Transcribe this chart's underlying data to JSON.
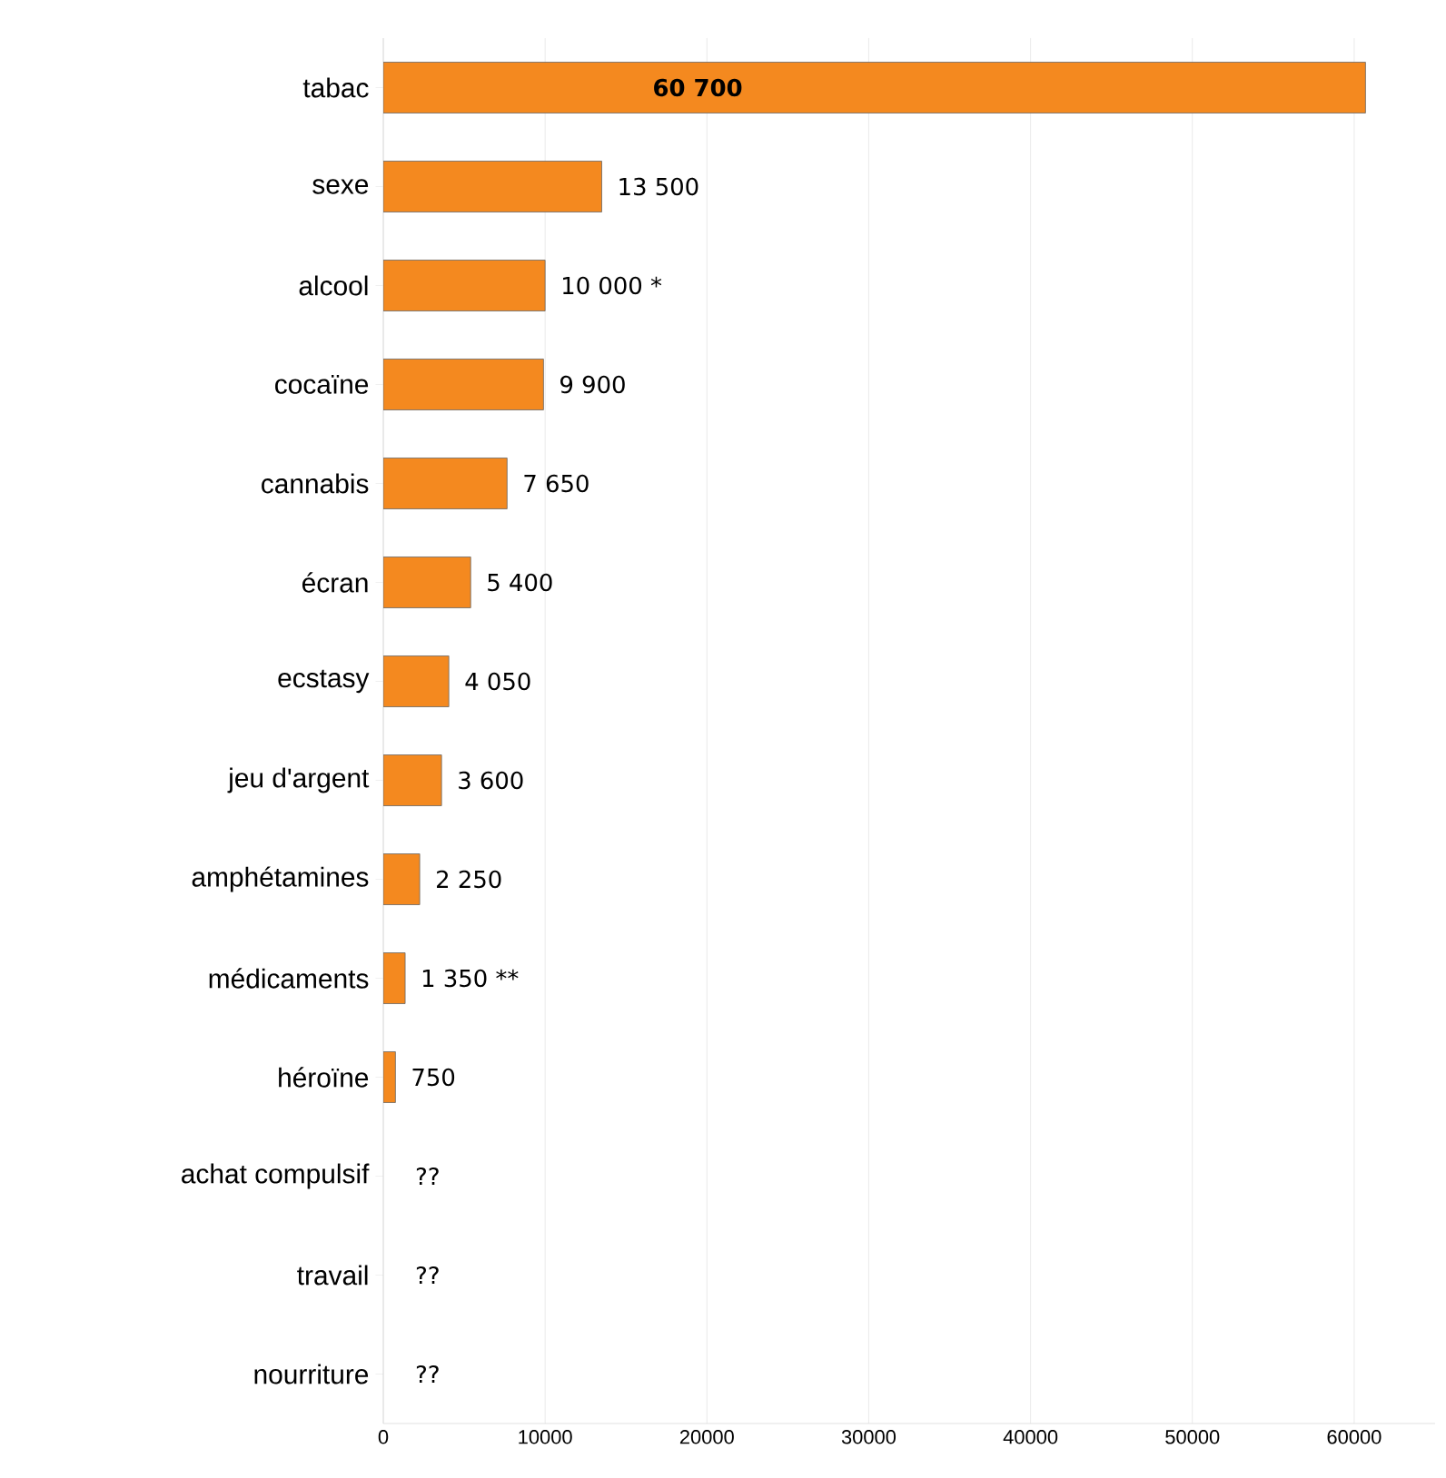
{
  "chart_data": {
    "type": "bar",
    "orientation": "horizontal",
    "categories": [
      "tabac",
      "sexe",
      "alcool",
      "cocaïne",
      "cannabis",
      "écran",
      "ecstasy",
      "jeu d'argent",
      "amphétamines",
      "médicaments",
      "héroïne",
      "achat compulsif",
      "travail",
      "nourriture"
    ],
    "values": [
      60700,
      13500,
      10000,
      9900,
      7650,
      5400,
      4050,
      3600,
      2250,
      1350,
      750,
      null,
      null,
      null
    ],
    "value_labels": [
      "**60 700**",
      "13 500",
      "10 000 *",
      "9 900",
      "7 650",
      "5 400",
      "4 050",
      "3 600",
      "2 250",
      "1 350 **",
      "750",
      "??",
      "??",
      "??"
    ],
    "color": "#f4891f",
    "xlim": [
      0,
      65000
    ],
    "xticks": [
      0,
      10000,
      20000,
      30000,
      40000,
      50000,
      60000
    ],
    "grid": "x"
  }
}
